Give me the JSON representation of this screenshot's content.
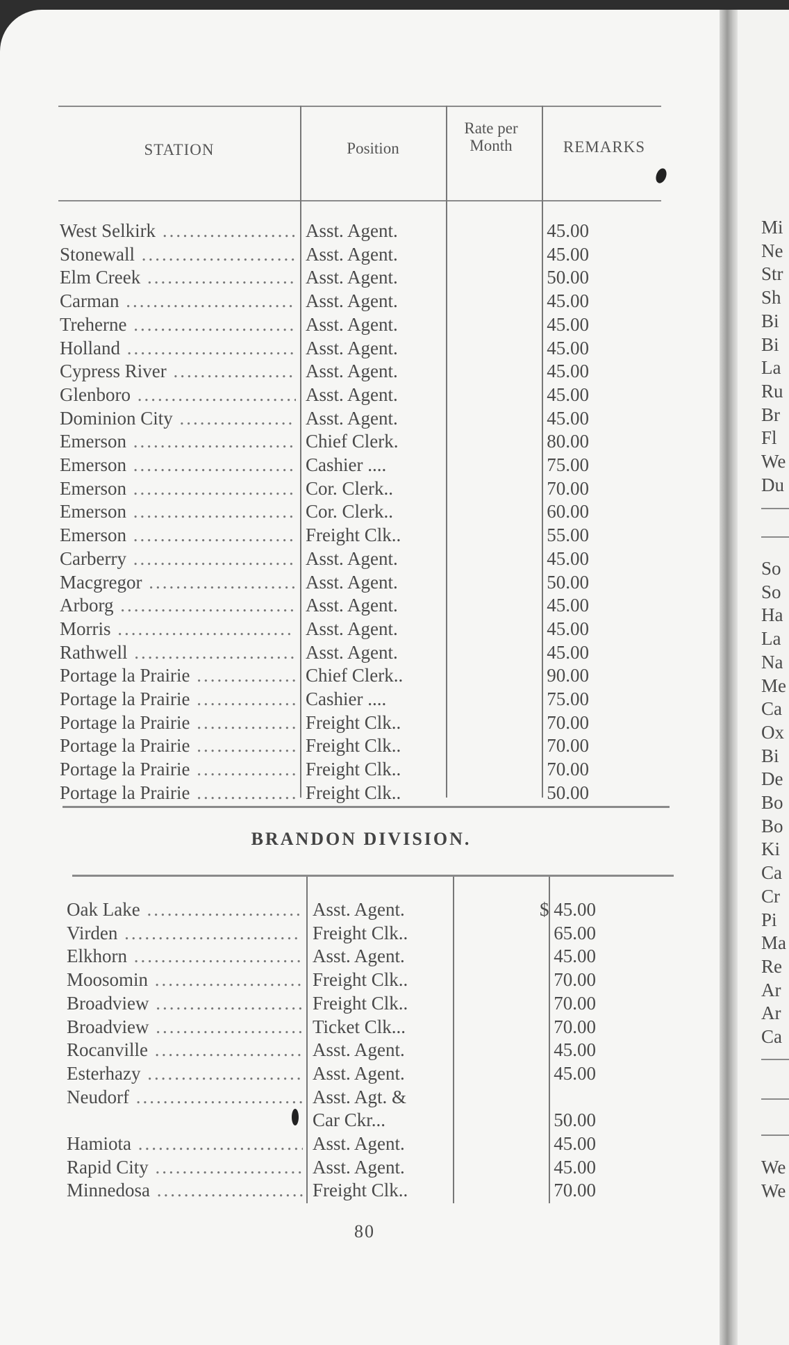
{
  "headers": {
    "station": "STATION",
    "position": "Position",
    "rate": "Rate per Month",
    "remarks": "REMARKS"
  },
  "section1": [
    [
      "West Selkirk",
      "Asst. Agent.",
      "45.00"
    ],
    [
      "Stonewall",
      "Asst. Agent.",
      "45.00"
    ],
    [
      "Elm Creek",
      "Asst. Agent.",
      "50.00"
    ],
    [
      "Carman",
      "Asst. Agent.",
      "45.00"
    ],
    [
      "Treherne",
      "Asst. Agent.",
      "45.00"
    ],
    [
      "Holland",
      "Asst. Agent.",
      "45.00"
    ],
    [
      "Cypress River",
      "Asst. Agent.",
      "45.00"
    ],
    [
      "Glenboro",
      "Asst. Agent.",
      "45.00"
    ],
    [
      "Dominion City",
      "Asst. Agent.",
      "45.00"
    ],
    [
      "Emerson",
      "Chief Clerk.",
      "80.00"
    ],
    [
      "Emerson",
      "Cashier ....",
      "75.00"
    ],
    [
      "Emerson",
      "Cor. Clerk..",
      "70.00"
    ],
    [
      "Emerson",
      "Cor. Clerk..",
      "60.00"
    ],
    [
      "Emerson",
      "Freight Clk..",
      "55.00"
    ],
    [
      "Carberry",
      "Asst. Agent.",
      "45.00"
    ],
    [
      "Macgregor",
      "Asst. Agent.",
      "50.00"
    ],
    [
      "Arborg",
      "Asst. Agent.",
      "45.00"
    ],
    [
      "Morris",
      "Asst. Agent.",
      "45.00"
    ],
    [
      "Rathwell",
      "Asst. Agent.",
      "45.00"
    ],
    [
      "Portage la Prairie",
      "Chief Clerk..",
      "90.00"
    ],
    [
      "Portage la Prairie",
      "Cashier ....",
      "75.00"
    ],
    [
      "Portage la Prairie",
      "Freight Clk..",
      "70.00"
    ],
    [
      "Portage la Prairie",
      "Freight Clk..",
      "70.00"
    ],
    [
      "Portage la Prairie",
      "Freight Clk..",
      "70.00"
    ],
    [
      "Portage la Prairie",
      "Freight Clk..",
      "50.00"
    ]
  ],
  "division_title": "BRANDON DIVISION.",
  "section2": [
    [
      "Oak Lake",
      "Asst. Agent.",
      "$ 45.00"
    ],
    [
      "Virden",
      "Freight Clk..",
      "65.00"
    ],
    [
      "Elkhorn",
      "Asst. Agent.",
      "45.00"
    ],
    [
      "Moosomin",
      "Freight Clk..",
      "70.00"
    ],
    [
      "Broadview",
      "Freight Clk..",
      "70.00"
    ],
    [
      "Broadview",
      "Ticket Clk...",
      "70.00"
    ],
    [
      "Rocanville",
      "Asst. Agent.",
      "45.00"
    ],
    [
      "Esterhazy",
      "Asst. Agent.",
      "45.00"
    ],
    [
      "Neudorf",
      "Asst. Agt. &",
      ""
    ],
    [
      "",
      "Car Ckr...",
      "50.00"
    ],
    [
      "Hamiota",
      "Asst. Agent.",
      "45.00"
    ],
    [
      "Rapid City",
      "Asst. Agent.",
      "45.00"
    ],
    [
      "Minnedosa",
      "Freight Clk..",
      "70.00"
    ]
  ],
  "page_number": "80",
  "right_page_fragments_a": [
    "Mi",
    "Ne",
    "Str",
    "Sh",
    "Bi",
    "Bi",
    "La",
    "Ru",
    "Br",
    "Fl",
    "We",
    "Du"
  ],
  "right_page_fragments_b": [
    "So",
    "So",
    "Ha",
    "La",
    "Na",
    "Me",
    "Ca",
    "Ox",
    "Bi",
    "De",
    "Bo",
    "Bo",
    "Ki",
    "Ca",
    "Cr",
    "Pi",
    "Ma",
    "Re",
    "Ar",
    "Ar",
    "Ca"
  ],
  "right_page_fragments_c": [
    "We",
    "We"
  ]
}
